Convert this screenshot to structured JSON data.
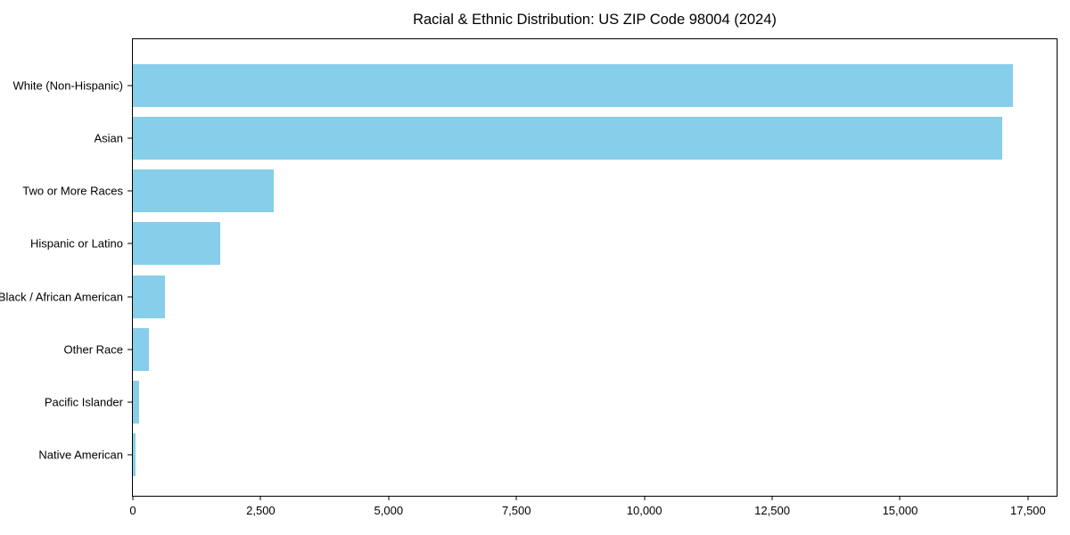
{
  "title": "Racial & Ethnic Distribution: US ZIP Code 98004 (2024)",
  "colors": {
    "bar": "#87CEEB",
    "axis": "#000000",
    "text": "#000000",
    "background": "#ffffff"
  },
  "chart_data": {
    "type": "bar",
    "orientation": "horizontal",
    "title": "Racial & Ethnic Distribution: US ZIP Code 98004 (2024)",
    "xlabel": "",
    "ylabel": "",
    "categories": [
      "White (Non-Hispanic)",
      "Asian",
      "Two or More Races",
      "Hispanic or Latino",
      "Black / African American",
      "Other Race",
      "Pacific Islander",
      "Native American"
    ],
    "values": [
      17200,
      17000,
      2750,
      1700,
      620,
      320,
      130,
      60
    ],
    "bar_color": "#87CEEB",
    "xlim": [
      0,
      18060
    ],
    "x_ticks": [
      0,
      2500,
      5000,
      7500,
      10000,
      12500,
      15000,
      17500
    ],
    "x_tick_labels": [
      "0",
      "2,500",
      "5,000",
      "7,500",
      "10,000",
      "12,500",
      "15,000",
      "17,500"
    ],
    "grid": false,
    "legend": null
  }
}
